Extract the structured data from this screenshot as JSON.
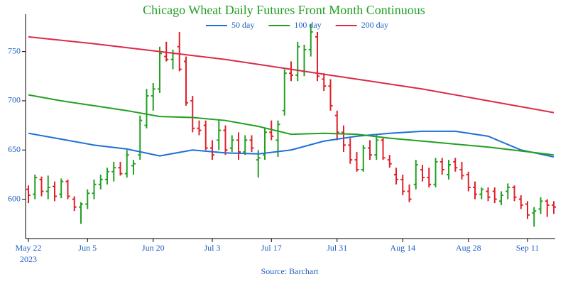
{
  "chart_data": {
    "type": "ohlc",
    "title": "Chicago Wheat Daily Futures Front Month Continuous",
    "source": "Source: Barchart",
    "x": [
      "2023-05-22",
      "2023-05-23",
      "2023-05-24",
      "2023-05-25",
      "2023-05-26",
      "2023-05-30",
      "2023-05-31",
      "2023-06-01",
      "2023-06-02",
      "2023-06-05",
      "2023-06-06",
      "2023-06-07",
      "2023-06-08",
      "2023-06-09",
      "2023-06-12",
      "2023-06-13",
      "2023-06-14",
      "2023-06-15",
      "2023-06-16",
      "2023-06-20",
      "2023-06-21",
      "2023-06-22",
      "2023-06-23",
      "2023-06-26",
      "2023-06-27",
      "2023-06-28",
      "2023-06-29",
      "2023-06-30",
      "2023-07-03",
      "2023-07-05",
      "2023-07-06",
      "2023-07-07",
      "2023-07-10",
      "2023-07-11",
      "2023-07-12",
      "2023-07-13",
      "2023-07-14",
      "2023-07-17",
      "2023-07-18",
      "2023-07-19",
      "2023-07-20",
      "2023-07-21",
      "2023-07-24",
      "2023-07-25",
      "2023-07-26",
      "2023-07-27",
      "2023-07-28",
      "2023-07-31",
      "2023-08-01",
      "2023-08-02",
      "2023-08-03",
      "2023-08-04",
      "2023-08-07",
      "2023-08-08",
      "2023-08-09",
      "2023-08-10",
      "2023-08-11",
      "2023-08-14",
      "2023-08-15",
      "2023-08-16",
      "2023-08-17",
      "2023-08-18",
      "2023-08-21",
      "2023-08-22",
      "2023-08-23",
      "2023-08-24",
      "2023-08-25",
      "2023-08-28",
      "2023-08-29",
      "2023-08-30",
      "2023-08-31",
      "2023-09-01",
      "2023-09-05",
      "2023-09-06",
      "2023-09-07",
      "2023-09-08",
      "2023-09-11",
      "2023-09-12",
      "2023-09-13",
      "2023-09-14",
      "2023-09-15"
    ],
    "open": [
      610,
      605,
      620,
      608,
      613,
      605,
      618,
      600,
      592,
      595,
      606,
      615,
      620,
      628,
      632,
      626,
      634,
      645,
      675,
      705,
      712,
      745,
      742,
      755,
      740,
      700,
      672,
      675,
      652,
      660,
      670,
      652,
      660,
      648,
      660,
      640,
      645,
      668,
      660,
      690,
      728,
      726,
      730,
      752,
      765,
      722,
      715,
      685,
      668,
      655,
      640,
      630,
      652,
      645,
      660,
      640,
      625,
      620,
      608,
      615,
      630,
      622,
      615,
      638,
      625,
      638,
      630,
      625,
      612,
      605,
      608,
      608,
      598,
      608,
      612,
      600,
      595,
      586,
      590,
      598,
      594
    ],
    "high": [
      614,
      625,
      623,
      624,
      618,
      621,
      620,
      603,
      597,
      610,
      620,
      625,
      632,
      638,
      638,
      650,
      640,
      685,
      712,
      718,
      755,
      760,
      752,
      770,
      745,
      705,
      680,
      680,
      660,
      680,
      675,
      665,
      668,
      665,
      665,
      650,
      672,
      680,
      680,
      732,
      740,
      760,
      757,
      778,
      770,
      728,
      722,
      690,
      675,
      662,
      648,
      655,
      660,
      665,
      662,
      645,
      632,
      625,
      615,
      640,
      635,
      632,
      642,
      642,
      640,
      642,
      638,
      628,
      618,
      612,
      612,
      612,
      608,
      616,
      614,
      604,
      598,
      592,
      602,
      600,
      598
    ],
    "low": [
      596,
      600,
      603,
      600,
      598,
      601,
      600,
      588,
      575,
      590,
      600,
      610,
      615,
      618,
      624,
      622,
      625,
      640,
      672,
      690,
      708,
      740,
      732,
      730,
      695,
      668,
      665,
      650,
      640,
      650,
      645,
      648,
      640,
      645,
      648,
      622,
      640,
      660,
      643,
      685,
      720,
      720,
      725,
      745,
      720,
      710,
      690,
      660,
      648,
      636,
      628,
      628,
      640,
      640,
      640,
      632,
      615,
      604,
      597,
      610,
      618,
      612,
      612,
      625,
      620,
      628,
      620,
      608,
      600,
      600,
      598,
      596,
      594,
      600,
      598,
      590,
      580,
      572,
      585,
      582,
      585
    ],
    "close": [
      604,
      622,
      608,
      612,
      603,
      618,
      603,
      592,
      595,
      606,
      615,
      620,
      628,
      632,
      626,
      645,
      636,
      680,
      705,
      712,
      748,
      742,
      748,
      732,
      698,
      672,
      670,
      652,
      645,
      670,
      650,
      660,
      648,
      660,
      652,
      642,
      668,
      664,
      676,
      728,
      726,
      755,
      752,
      770,
      725,
      715,
      695,
      668,
      655,
      640,
      630,
      652,
      645,
      660,
      642,
      636,
      620,
      608,
      600,
      635,
      622,
      615,
      638,
      630,
      635,
      632,
      624,
      612,
      605,
      610,
      602,
      600,
      604,
      612,
      602,
      594,
      584,
      588,
      598,
      594,
      592
    ],
    "up_color": "#22a022",
    "down_color": "#e0202a",
    "series": [
      {
        "name": "50 day",
        "color": "#1f6fd6",
        "x": [
          "2023-05-22",
          "2023-05-30",
          "2023-06-06",
          "2023-06-13",
          "2023-06-21",
          "2023-06-28",
          "2023-07-06",
          "2023-07-13",
          "2023-07-20",
          "2023-07-27",
          "2023-08-03",
          "2023-08-10",
          "2023-08-17",
          "2023-08-24",
          "2023-08-31",
          "2023-09-08",
          "2023-09-15"
        ],
        "values": [
          667,
          661,
          655,
          651,
          644,
          650,
          647,
          646,
          650,
          659,
          664,
          667,
          669,
          669,
          664,
          650,
          643
        ]
      },
      {
        "name": "100 day",
        "color": "#22a022",
        "x": [
          "2023-05-22",
          "2023-05-30",
          "2023-06-06",
          "2023-06-13",
          "2023-06-21",
          "2023-06-28",
          "2023-07-06",
          "2023-07-13",
          "2023-07-20",
          "2023-07-27",
          "2023-08-03",
          "2023-08-10",
          "2023-08-17",
          "2023-08-24",
          "2023-08-31",
          "2023-09-08",
          "2023-09-15"
        ],
        "values": [
          706,
          700,
          695,
          690,
          684,
          683,
          680,
          674,
          666,
          667,
          666,
          662,
          659,
          656,
          653,
          649,
          645
        ]
      },
      {
        "name": "200 day",
        "color": "#dc2a45",
        "x": [
          "2023-05-22",
          "2023-06-06",
          "2023-06-21",
          "2023-07-06",
          "2023-07-20",
          "2023-08-03",
          "2023-08-17",
          "2023-08-31",
          "2023-09-15"
        ],
        "values": [
          765,
          758,
          750,
          742,
          732,
          722,
          712,
          700,
          688
        ]
      }
    ],
    "ylim": [
      560,
      788
    ],
    "yticks": [
      600,
      650,
      700,
      750
    ],
    "xticks": [
      {
        "value": "2023-05-22",
        "label": "May 22\n2023"
      },
      {
        "value": "2023-06-05",
        "label": "Jun 5"
      },
      {
        "value": "2023-06-20",
        "label": "Jun 20"
      },
      {
        "value": "2023-07-03",
        "label": "Jul 3"
      },
      {
        "value": "2023-07-17",
        "label": "Jul 17"
      },
      {
        "value": "2023-07-31",
        "label": "Jul 31"
      },
      {
        "value": "2023-08-14",
        "label": "Aug 14"
      },
      {
        "value": "2023-08-28",
        "label": "Aug 28"
      },
      {
        "value": "2023-09-11",
        "label": "Sep 11"
      }
    ],
    "legend": "top"
  }
}
